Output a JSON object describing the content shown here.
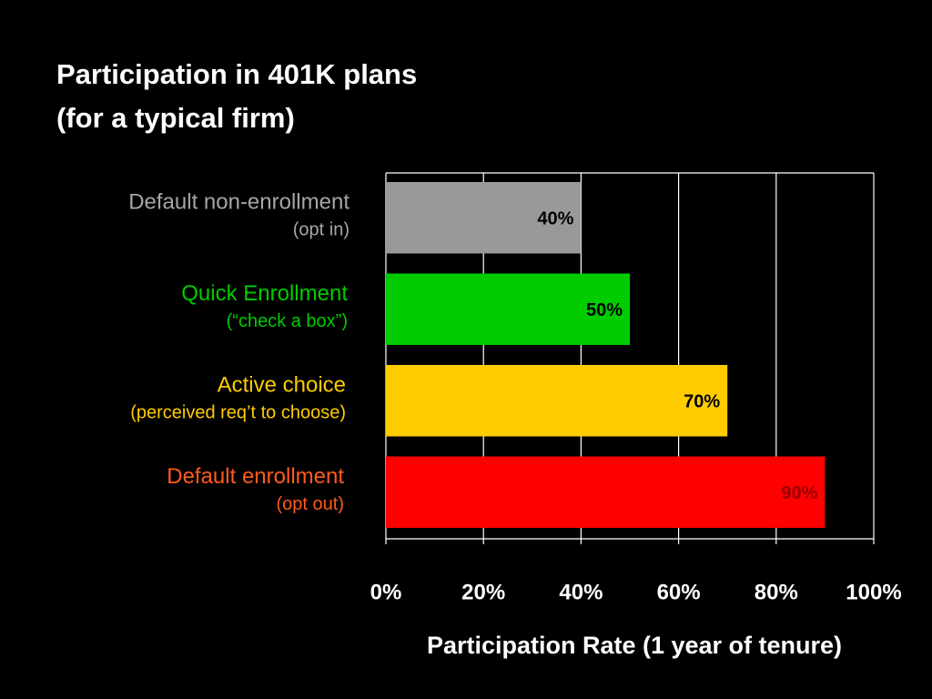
{
  "chart_data": {
    "type": "hbar",
    "title": "Participation in 401K plans",
    "subtitle": "(for a typical firm)",
    "categories": [
      "Default non-enrollment",
      "Quick Enrollment",
      "Active choice",
      "Default enrollment"
    ],
    "category_notes": [
      "(opt in)",
      "(“check a box”)",
      "(perceived req’t to choose)",
      "(opt out)"
    ],
    "category_colors": [
      "#a6a6a6",
      "#00cc00",
      "#ffcc00",
      "#ff5a1e"
    ],
    "values": [
      40,
      50,
      70,
      90
    ],
    "value_labels": [
      "40%",
      "50%",
      "70%",
      "90%"
    ],
    "colors": [
      "#999999",
      "#00cc00",
      "#ffcc00",
      "#ff0000"
    ],
    "value_label_colors": [
      "#000000",
      "#000000",
      "#000000",
      "#990000"
    ],
    "xlim": [
      0,
      100
    ],
    "xticks": [
      {
        "value": 0,
        "label": "0%"
      },
      {
        "value": 20,
        "label": "20%"
      },
      {
        "value": 40,
        "label": "40%"
      },
      {
        "value": 60,
        "label": "60%"
      },
      {
        "value": 80,
        "label": "80%"
      },
      {
        "value": 100,
        "label": "100%"
      }
    ],
    "xlabel": "Participation Rate (1 year of tenure)",
    "grid": true
  }
}
